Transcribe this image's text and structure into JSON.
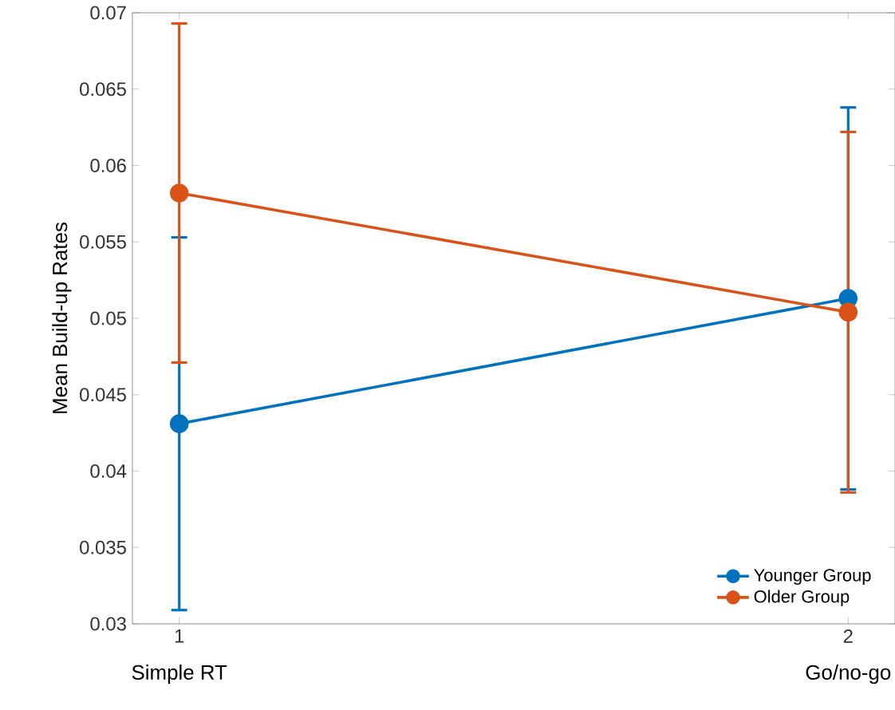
{
  "chart_data": {
    "type": "line",
    "ylabel": "Mean Build-up Rates",
    "x": [
      1,
      2
    ],
    "series": [
      {
        "name": "Younger Group",
        "color": "#0072bd",
        "values": [
          0.0431,
          0.0513
        ],
        "errors": [
          0.0122,
          0.0125
        ]
      },
      {
        "name": "Older Group",
        "color": "#d95319",
        "values": [
          0.0582,
          0.0504
        ],
        "errors": [
          0.0111,
          0.0118
        ]
      }
    ],
    "xlim": [
      0.93,
      2.07
    ],
    "xticks": [
      1,
      2
    ],
    "ylim": [
      0.03,
      0.07
    ],
    "yticks": [
      0.03,
      0.035,
      0.04,
      0.045,
      0.05,
      0.055,
      0.06,
      0.065,
      0.07
    ],
    "annotations": [
      "Simple RT",
      "Go/no-go"
    ],
    "legend": "bottom right",
    "marker": "circle",
    "line_style": "solid",
    "grid": false
  }
}
